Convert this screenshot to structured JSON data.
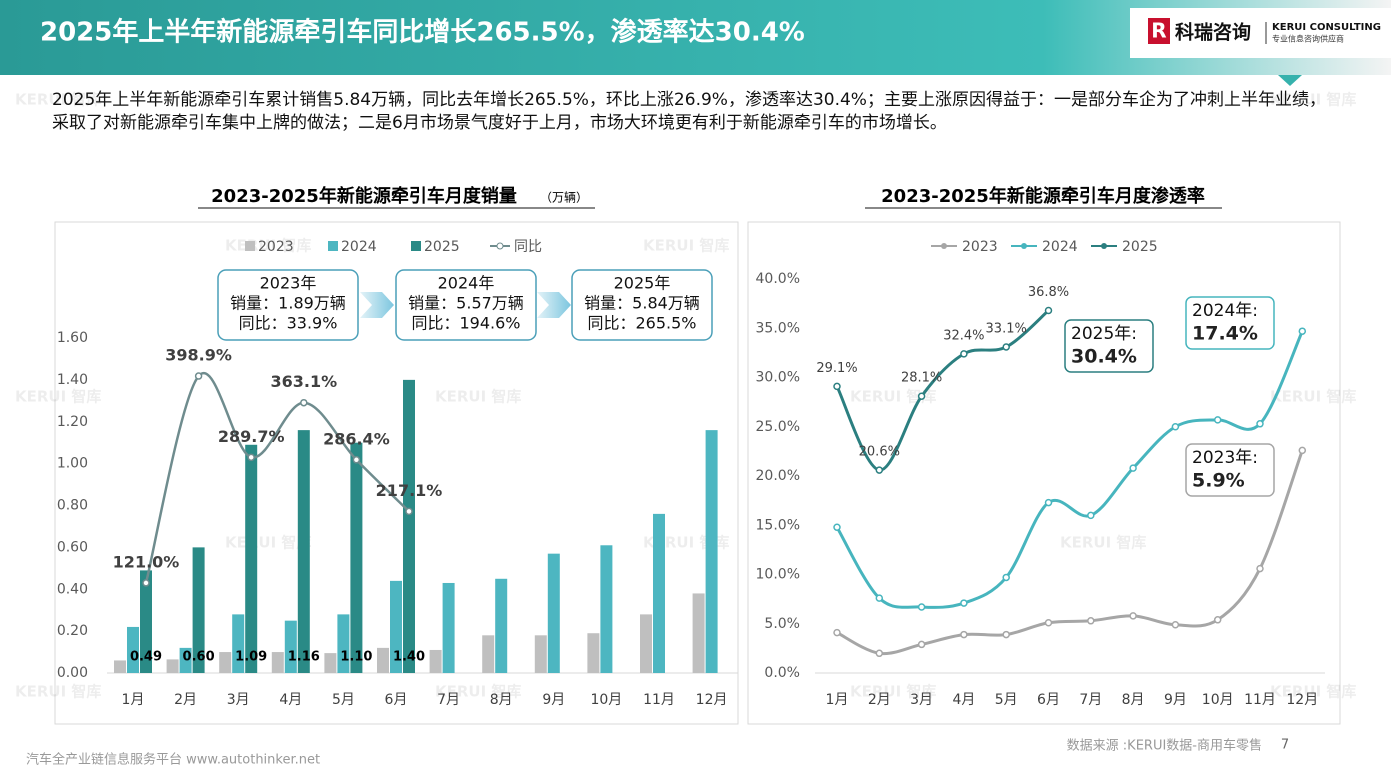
{
  "header": {
    "title": "2025年上半年新能源牵引车同比增长265.5%，渗透率达30.4%",
    "logo": "科瑞咨询",
    "logo_en": "KERUI CONSULTING",
    "logo_sub": "专业信息咨询供应商"
  },
  "paragraph": "2025年上半年新能源牵引车累计销售5.84万辆，同比去年增长265.5%，环比上涨26.9%，渗透率达30.4%；主要上涨原因得益于：一是部分车企为了冲刺上半年业绩，采取了对新能源牵引车集中上牌的做法；二是6月市场景气度好于上月，市场大环境更有利于新能源牵引车的市场增长。",
  "watermark": "KERUI 智库",
  "footer": {
    "left": "汽车全产业链信息服务平台 www.autothinker.net",
    "source": "数据来源 :KERUI数据-商用车零售",
    "page": "7"
  },
  "chart_data": [
    {
      "type": "bar",
      "title": "2023-2025年新能源牵引车月度销量",
      "subtitle": "（万辆）",
      "categories": [
        "1月",
        "2月",
        "3月",
        "4月",
        "5月",
        "6月",
        "7月",
        "8月",
        "9月",
        "10月",
        "11月",
        "12月"
      ],
      "ylim": [
        0,
        1.6
      ],
      "yticks": [
        {
          "value": 0,
          "label": "0.00"
        },
        {
          "value": 0.2,
          "label": "0.20"
        },
        {
          "value": 0.4,
          "label": "0.40"
        },
        {
          "value": 0.6,
          "label": "0.60"
        },
        {
          "value": 0.8,
          "label": "0.80"
        },
        {
          "value": 1.0,
          "label": "1.00"
        },
        {
          "value": 1.2,
          "label": "1.20"
        },
        {
          "value": 1.4,
          "label": "1.40"
        },
        {
          "value": 1.6,
          "label": "1.60"
        }
      ],
      "y2lim": [
        0,
        450
      ],
      "grid": false,
      "series": [
        {
          "name": "2023",
          "type": "bar",
          "color": "#bfbfbf",
          "values": [
            0.06,
            0.065,
            0.1,
            0.1,
            0.095,
            0.12,
            0.11,
            0.18,
            0.18,
            0.19,
            0.28,
            0.38
          ]
        },
        {
          "name": "2024",
          "type": "bar",
          "color": "#4db6c1",
          "values": [
            0.22,
            0.12,
            0.28,
            0.25,
            0.28,
            0.44,
            0.43,
            0.45,
            0.57,
            0.61,
            0.76,
            1.16
          ]
        },
        {
          "name": "2025",
          "type": "bar",
          "color": "#2a8a86",
          "values": [
            0.49,
            0.6,
            1.09,
            1.16,
            1.1,
            1.4,
            null,
            null,
            null,
            null,
            null,
            null
          ],
          "value_labels": [
            "0.49",
            "0.60",
            "1.09",
            "1.16",
            "1.10",
            "1.40",
            null,
            null,
            null,
            null,
            null,
            null
          ]
        },
        {
          "name": "同比",
          "type": "line",
          "axis": "y2",
          "color": "#6f8c8e",
          "values": [
            121.0,
            398.9,
            289.7,
            363.1,
            286.4,
            217.1,
            null,
            null,
            null,
            null,
            null,
            null
          ],
          "value_labels": [
            "121.0%",
            "398.9%",
            "289.7%",
            "363.1%",
            "286.4%",
            "217.1%",
            null,
            null,
            null,
            null,
            null,
            null
          ]
        }
      ],
      "annotations": [
        [
          "2023年",
          "销量：1.89万辆",
          "同比：33.9%"
        ],
        [
          "2024年",
          "销量：5.57万辆",
          "同比：194.6%"
        ],
        [
          "2025年",
          "销量：5.84万辆",
          "同比：265.5%"
        ]
      ]
    },
    {
      "type": "line",
      "title": "2023-2025年新能源牵引车月度渗透率",
      "categories": [
        "1月",
        "2月",
        "3月",
        "4月",
        "5月",
        "6月",
        "7月",
        "8月",
        "9月",
        "10月",
        "11月",
        "12月"
      ],
      "ylim": [
        0,
        40
      ],
      "yticks": [
        {
          "value": 0,
          "label": "0.0%"
        },
        {
          "value": 5,
          "label": "5.0%"
        },
        {
          "value": 10,
          "label": "10.0%"
        },
        {
          "value": 15,
          "label": "15.0%"
        },
        {
          "value": 20,
          "label": "20.0%"
        },
        {
          "value": 25,
          "label": "25.0%"
        },
        {
          "value": 30,
          "label": "30.0%"
        },
        {
          "value": 35,
          "label": "35.0%"
        },
        {
          "value": 40,
          "label": "40.0%"
        }
      ],
      "grid": false,
      "series": [
        {
          "name": "2023",
          "color": "#a6a6a6",
          "values": [
            4.1,
            2.0,
            2.9,
            3.9,
            3.9,
            5.1,
            5.3,
            5.8,
            4.9,
            5.4,
            10.6,
            22.6
          ]
        },
        {
          "name": "2024",
          "color": "#47b5be",
          "values": [
            14.8,
            7.6,
            6.7,
            7.1,
            9.7,
            17.3,
            16.0,
            20.8,
            25.0,
            25.7,
            25.3,
            34.7
          ]
        },
        {
          "name": "2025",
          "color": "#2b7f80",
          "values": [
            29.1,
            20.6,
            28.1,
            32.4,
            33.1,
            36.8,
            null,
            null,
            null,
            null,
            null,
            null
          ],
          "value_labels": [
            "29.1%",
            "20.6%",
            "28.1%",
            "32.4%",
            "33.1%",
            "36.8%",
            null,
            null,
            null,
            null,
            null,
            null
          ]
        }
      ],
      "annotations": [
        [
          "2025年:",
          "30.4%"
        ],
        [
          "2024年:",
          "17.4%"
        ],
        [
          "2023年:",
          "5.9%"
        ]
      ]
    }
  ]
}
